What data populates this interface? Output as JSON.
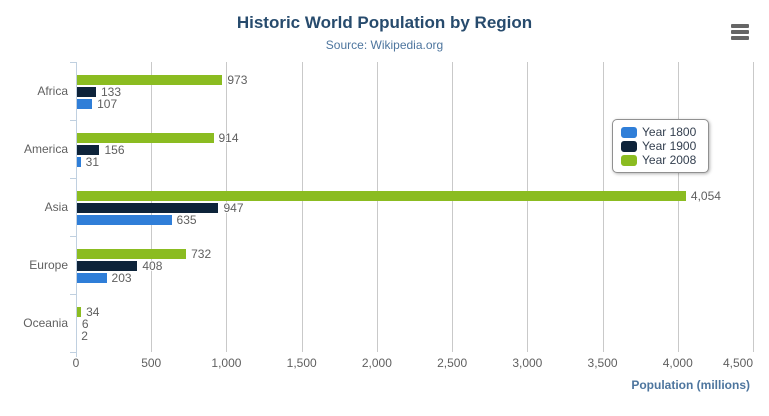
{
  "title": "Historic World Population by Region",
  "subtitle": "Source: Wikipedia.org",
  "menu": {
    "icon": "hamburger-icon"
  },
  "colors": {
    "year_1800": "#2f7ed8",
    "year_1900": "#0d233a",
    "year_2008": "#8bbc21",
    "title_text": "#274b6d",
    "subtitle_text": "#4d759e",
    "axis_label_text": "#606060",
    "gridline": "#c9c9c9",
    "axis_line": "#c0d0e0",
    "legend_border": "#909090"
  },
  "chart_data": {
    "type": "bar",
    "orientation": "horizontal",
    "title": "Historic World Population by Region",
    "subtitle": "Source: Wikipedia.org",
    "categories": [
      "Africa",
      "America",
      "Asia",
      "Europe",
      "Oceania"
    ],
    "series": [
      {
        "name": "Year 1800",
        "color": "#2f7ed8",
        "values": [
          107,
          31,
          635,
          203,
          2
        ]
      },
      {
        "name": "Year 1900",
        "color": "#0d233a",
        "values": [
          133,
          156,
          947,
          408,
          6
        ]
      },
      {
        "name": "Year 2008",
        "color": "#8bbc21",
        "values": [
          973,
          914,
          4054,
          732,
          34
        ]
      }
    ],
    "bar_order_top_to_bottom": [
      "Year 2008",
      "Year 1900",
      "Year 1800"
    ],
    "data_labels": true,
    "xlabel": "Population (millions)",
    "xlim": [
      0,
      4500
    ],
    "x_ticks": [
      0,
      500,
      1000,
      1500,
      2000,
      2500,
      3000,
      3500,
      4000,
      4500
    ],
    "grid": true,
    "legend_position": "right",
    "legend_items": [
      "Year 1800",
      "Year 1900",
      "Year 2008"
    ]
  }
}
